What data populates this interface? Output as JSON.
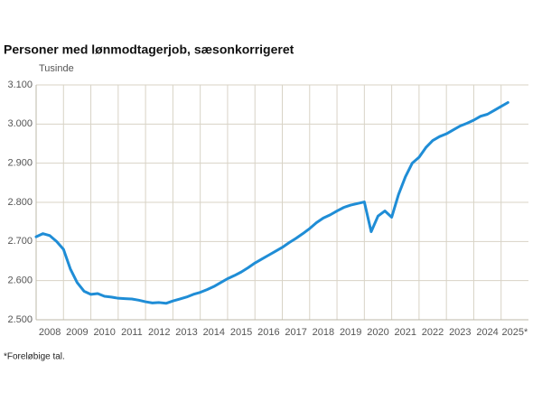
{
  "chart_data": {
    "type": "line",
    "title": "Personer med lønmodtagerjob, sæsonkorrigeret",
    "y_label": "Tusinde",
    "footnote": "*Foreløbige tal.",
    "x": [
      2008.0,
      2008.25,
      2008.5,
      2008.75,
      2009.0,
      2009.25,
      2009.5,
      2009.75,
      2010.0,
      2010.25,
      2010.5,
      2010.75,
      2011.0,
      2011.25,
      2011.5,
      2011.75,
      2012.0,
      2012.25,
      2012.5,
      2012.75,
      2013.0,
      2013.25,
      2013.5,
      2013.75,
      2014.0,
      2014.25,
      2014.5,
      2014.75,
      2015.0,
      2015.25,
      2015.5,
      2015.75,
      2016.0,
      2016.25,
      2016.5,
      2016.75,
      2017.0,
      2017.25,
      2017.5,
      2017.75,
      2018.0,
      2018.25,
      2018.5,
      2018.75,
      2019.0,
      2019.25,
      2019.5,
      2019.75,
      2020.0,
      2020.25,
      2020.5,
      2020.75,
      2021.0,
      2021.25,
      2021.5,
      2021.75,
      2022.0,
      2022.25,
      2022.5,
      2022.75,
      2023.0,
      2023.25,
      2023.5,
      2023.75,
      2024.0,
      2024.25,
      2024.5,
      2024.75,
      2025.0,
      2025.25
    ],
    "series": [
      {
        "color": "#1f8dd6",
        "values": [
          2712,
          2720,
          2715,
          2700,
          2680,
          2630,
          2595,
          2573,
          2565,
          2567,
          2560,
          2558,
          2555,
          2554,
          2553,
          2550,
          2546,
          2543,
          2544,
          2542,
          2548,
          2553,
          2558,
          2565,
          2570,
          2577,
          2585,
          2595,
          2605,
          2613,
          2622,
          2633,
          2645,
          2655,
          2665,
          2675,
          2685,
          2697,
          2708,
          2720,
          2733,
          2748,
          2760,
          2768,
          2778,
          2787,
          2793,
          2797,
          2801,
          2725,
          2765,
          2778,
          2762,
          2820,
          2865,
          2900,
          2915,
          2940,
          2958,
          2968,
          2975,
          2985,
          2995,
          3002,
          3010,
          3020,
          3025,
          3035,
          3045,
          3055
        ]
      }
    ],
    "xlim": [
      2008,
      2026
    ],
    "xticks": [
      {
        "value": 2008,
        "label": "2008"
      },
      {
        "value": 2009,
        "label": "2009"
      },
      {
        "value": 2010,
        "label": "2010"
      },
      {
        "value": 2011,
        "label": "2011"
      },
      {
        "value": 2012,
        "label": "2012"
      },
      {
        "value": 2013,
        "label": "2013"
      },
      {
        "value": 2014,
        "label": "2014"
      },
      {
        "value": 2015,
        "label": "2015"
      },
      {
        "value": 2016,
        "label": "2016"
      },
      {
        "value": 2017,
        "label": "2017"
      },
      {
        "value": 2018,
        "label": "2018"
      },
      {
        "value": 2019,
        "label": "2019"
      },
      {
        "value": 2020,
        "label": "2020"
      },
      {
        "value": 2021,
        "label": "2021"
      },
      {
        "value": 2022,
        "label": "2022"
      },
      {
        "value": 2023,
        "label": "2023"
      },
      {
        "value": 2024,
        "label": "2024"
      },
      {
        "value": 2025,
        "label": "2025*"
      }
    ],
    "ylim": [
      2500,
      3100
    ],
    "yticks": [
      {
        "value": 2500,
        "label": "2.500"
      },
      {
        "value": 2600,
        "label": "2.600"
      },
      {
        "value": 2700,
        "label": "2.700"
      },
      {
        "value": 2800,
        "label": "2.800"
      },
      {
        "value": 2900,
        "label": "2.900"
      },
      {
        "value": 3000,
        "label": "3.000"
      },
      {
        "value": 3100,
        "label": "3.100"
      }
    ],
    "grid": true
  }
}
